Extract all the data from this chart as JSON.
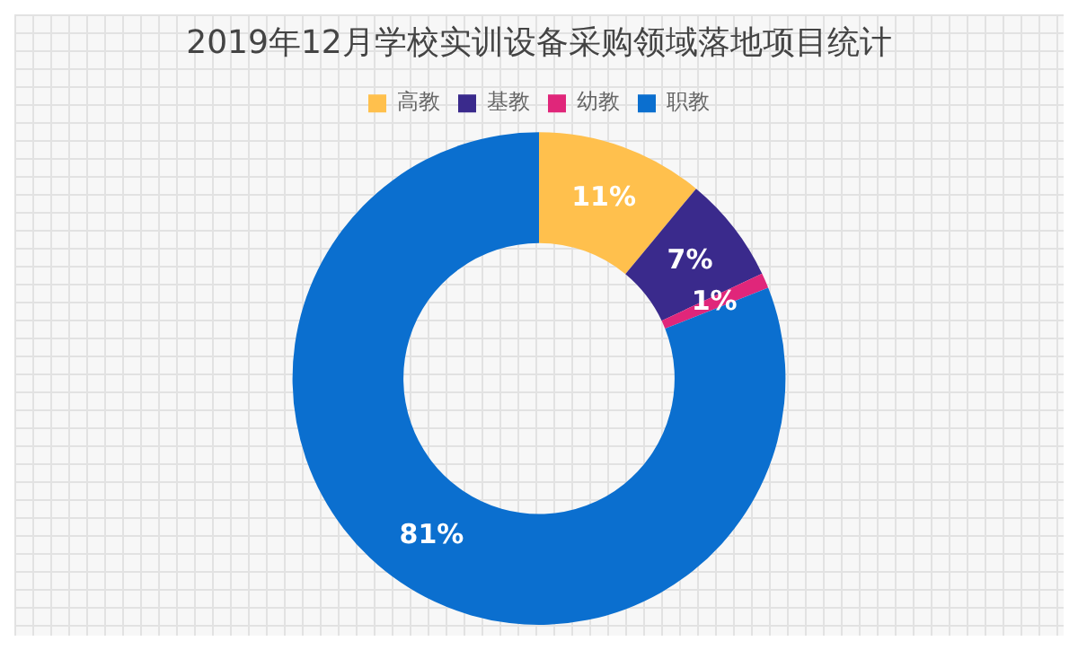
{
  "chart_data": {
    "type": "donut",
    "title": "2019年12月学校实训设备采购领域落地项目统计",
    "categories": [
      "高教",
      "基教",
      "幼教",
      "职教"
    ],
    "values": [
      11,
      7,
      1,
      81
    ],
    "colors": [
      "#ffc04d",
      "#3a2a8c",
      "#e0267a",
      "#0b6fcf"
    ],
    "value_labels": [
      "11%",
      "7%",
      "1%",
      "81%"
    ],
    "legend": "top"
  }
}
